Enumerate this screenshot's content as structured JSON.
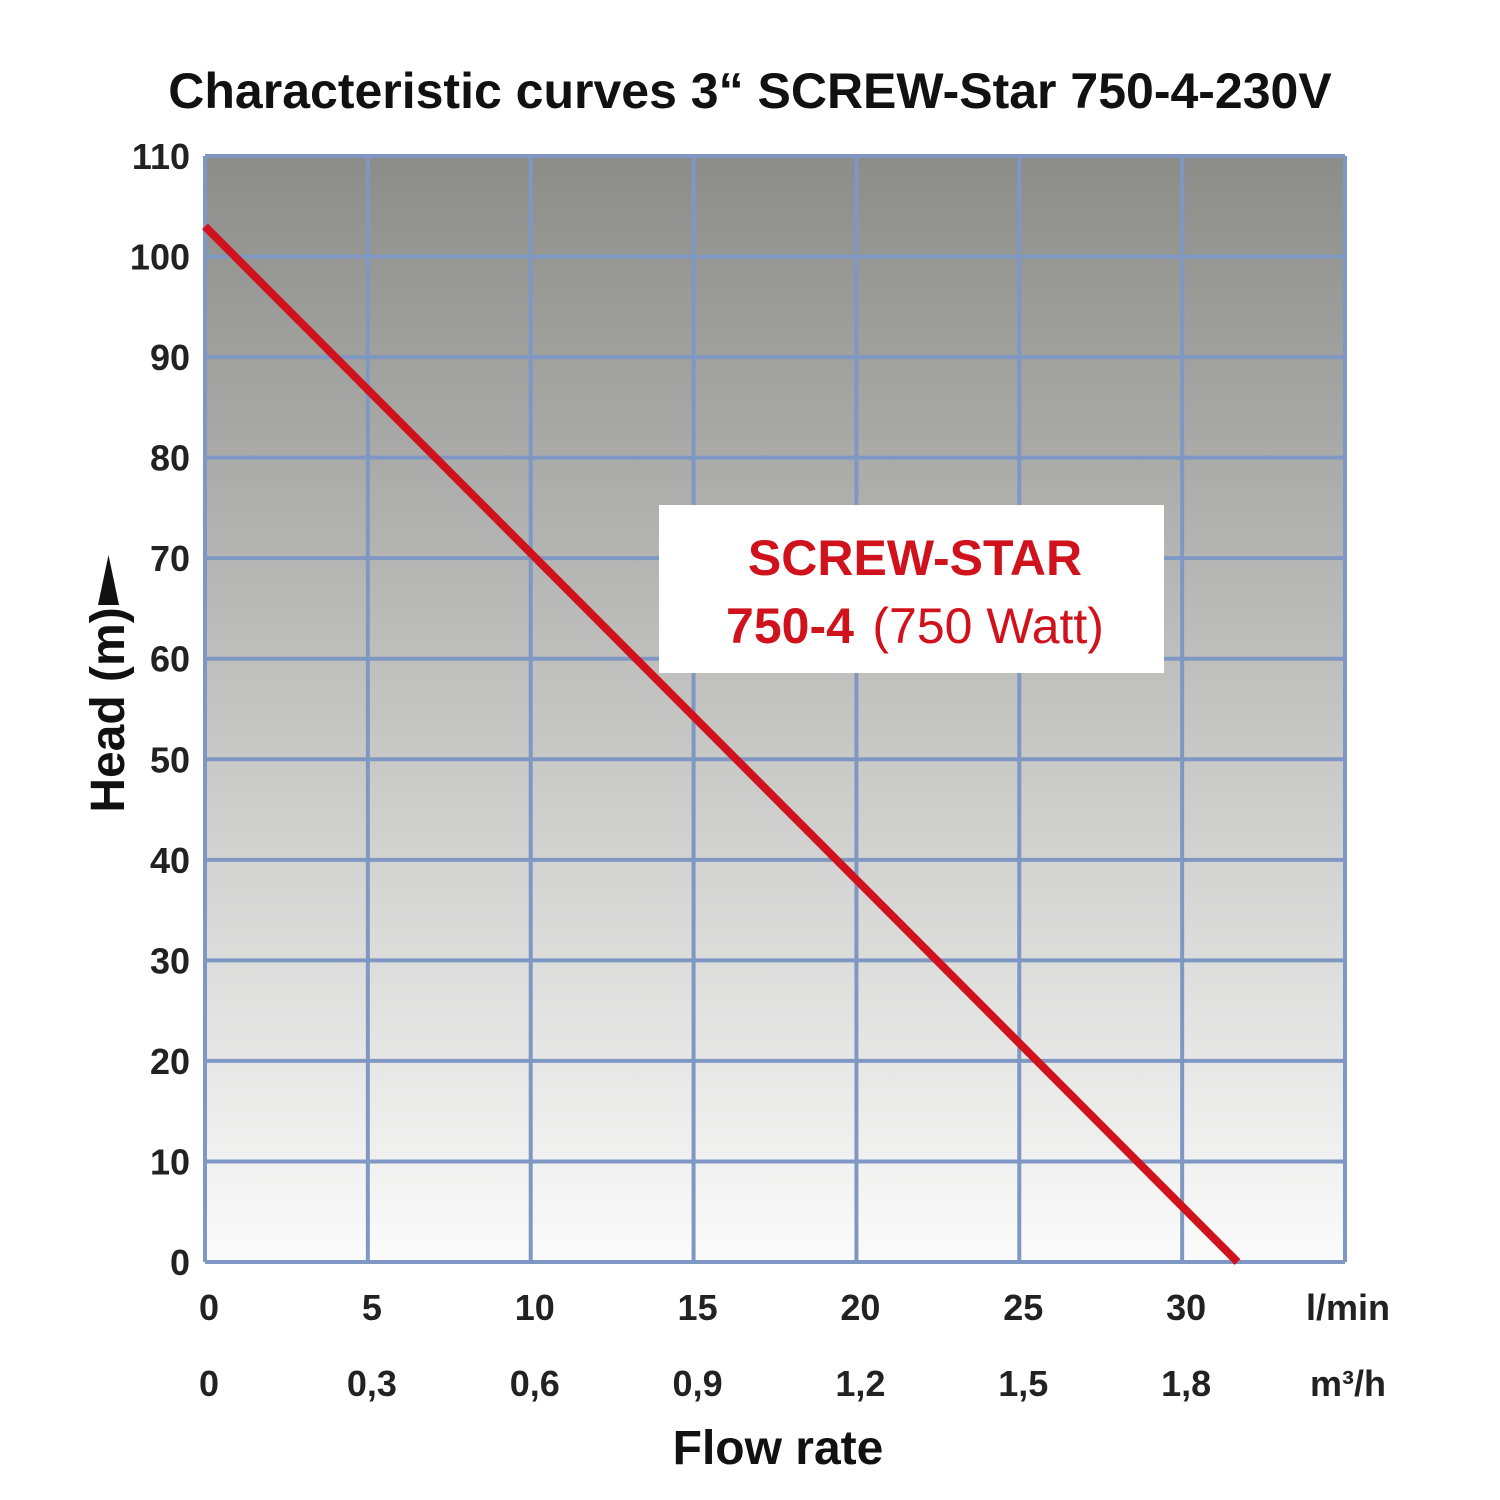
{
  "chart_data": {
    "type": "line",
    "title": "Characteristic curves 3“ SCREW-Star 750-4-230V",
    "xlabel": "Flow rate",
    "ylabel": "Head (m)",
    "xlim": [
      0,
      35
    ],
    "ylim": [
      0,
      110
    ],
    "x_ticks": [
      0,
      5,
      10,
      15,
      20,
      25,
      30
    ],
    "x_tick_labels": [
      "0",
      "5",
      "10",
      "15",
      "20",
      "25",
      "30"
    ],
    "x_unit": "l/min",
    "x_secondary_tick_labels": [
      "0",
      "0,3",
      "0,6",
      "0,9",
      "1,2",
      "1,5",
      "1,8"
    ],
    "x_secondary_unit": "m³/h",
    "y_ticks": [
      0,
      10,
      20,
      30,
      40,
      50,
      60,
      70,
      80,
      90,
      100,
      110
    ],
    "y_tick_labels": [
      "0",
      "10",
      "20",
      "30",
      "40",
      "50",
      "60",
      "70",
      "80",
      "90",
      "100",
      "110"
    ],
    "grid": true,
    "series": [
      {
        "name": "SCREW-STAR 750-4 (750 Watt)",
        "color": "#d0121d",
        "x": [
          0,
          31.7
        ],
        "y": [
          103,
          0
        ]
      }
    ],
    "annotation": {
      "line1": "SCREW-STAR",
      "line2_bold": "750-4",
      "line2_normal": "(750 Watt)"
    },
    "colors": {
      "grid": "#7f98c3",
      "bg_top": "#8c8c89",
      "bg_bottom": "#fbfbfb",
      "line": "#d0121d"
    }
  }
}
